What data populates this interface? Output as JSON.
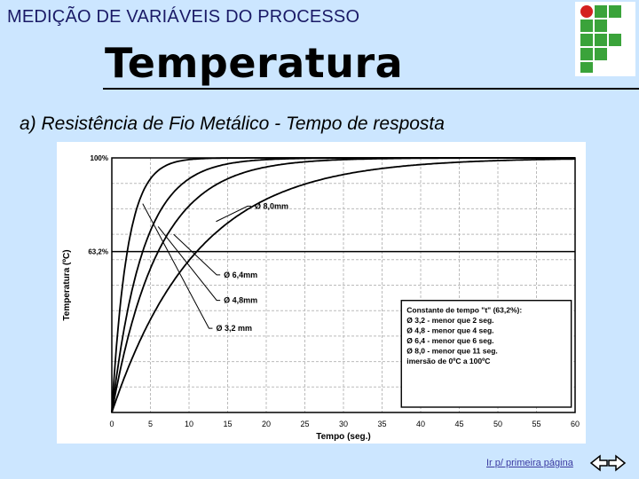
{
  "header": {
    "subject": "MEDIÇÃO DE VARIÁVEIS DO PROCESSO",
    "title": "Temperatura",
    "subtitle": "a) Resistência de Fio Metálico - Tempo de resposta"
  },
  "logo": {
    "icon": "institution-logo-icon",
    "colors": [
      "#d42020",
      "#3aa33a"
    ]
  },
  "footer": {
    "link_label": "Ir p/ primeira página",
    "nav_icon": "left-right-arrows-icon"
  },
  "chart_data": {
    "type": "line",
    "xlabel": "Tempo (seg.)",
    "ylabel": "Temperatura (ºC)",
    "x_ticks": [
      "0",
      "5",
      "10",
      "15",
      "20",
      "25",
      "30",
      "35",
      "40",
      "45",
      "50",
      "55",
      "60"
    ],
    "y_ticks": [
      "100%",
      "63,2%"
    ],
    "xlim": [
      0,
      60
    ],
    "ylim": [
      0,
      100
    ],
    "grid": true,
    "series": [
      {
        "name": "Ø 3,2 mm",
        "time_constant": 2,
        "x": [
          0,
          1,
          2,
          3,
          4,
          6,
          8,
          10,
          14,
          20
        ],
        "y": [
          0,
          39.3,
          63.2,
          77.7,
          86.5,
          95.0,
          98.2,
          99.3,
          99.9,
          100
        ]
      },
      {
        "name": "Ø 4,8 mm",
        "time_constant": 4,
        "x": [
          0,
          2,
          4,
          6,
          8,
          12,
          16,
          20,
          26
        ],
        "y": [
          0,
          39.3,
          63.2,
          77.7,
          86.5,
          95.0,
          98.2,
          99.3,
          99.8
        ]
      },
      {
        "name": "Ø 6,4 mm",
        "time_constant": 6,
        "x": [
          0,
          3,
          6,
          9,
          12,
          18,
          24,
          30
        ],
        "y": [
          0,
          39.3,
          63.2,
          77.7,
          86.5,
          95.0,
          98.2,
          99.3
        ]
      },
      {
        "name": "Ø 8,0 mm",
        "time_constant": 11,
        "x": [
          0,
          4,
          8,
          11,
          16,
          22,
          28,
          34
        ],
        "y": [
          0,
          30.5,
          51.7,
          63.2,
          76.6,
          86.5,
          92.2,
          95.4
        ]
      }
    ],
    "annotations": [
      "Ø 8,0mm",
      "Ø 6,4mm",
      "Ø 4,8mm",
      "Ø 3,2 mm"
    ],
    "legend_box": {
      "lines": [
        "Constante de tempo \"t\" (63,2%):",
        "Ø 3,2 - menor que 2 seg.",
        "Ø 4,8 - menor que 4 seg.",
        "Ø 6,4 - menor que 6 seg.",
        "Ø 8,0 - menor que 11 seg.",
        "imersão de 0ºC a 100ºC"
      ]
    }
  }
}
